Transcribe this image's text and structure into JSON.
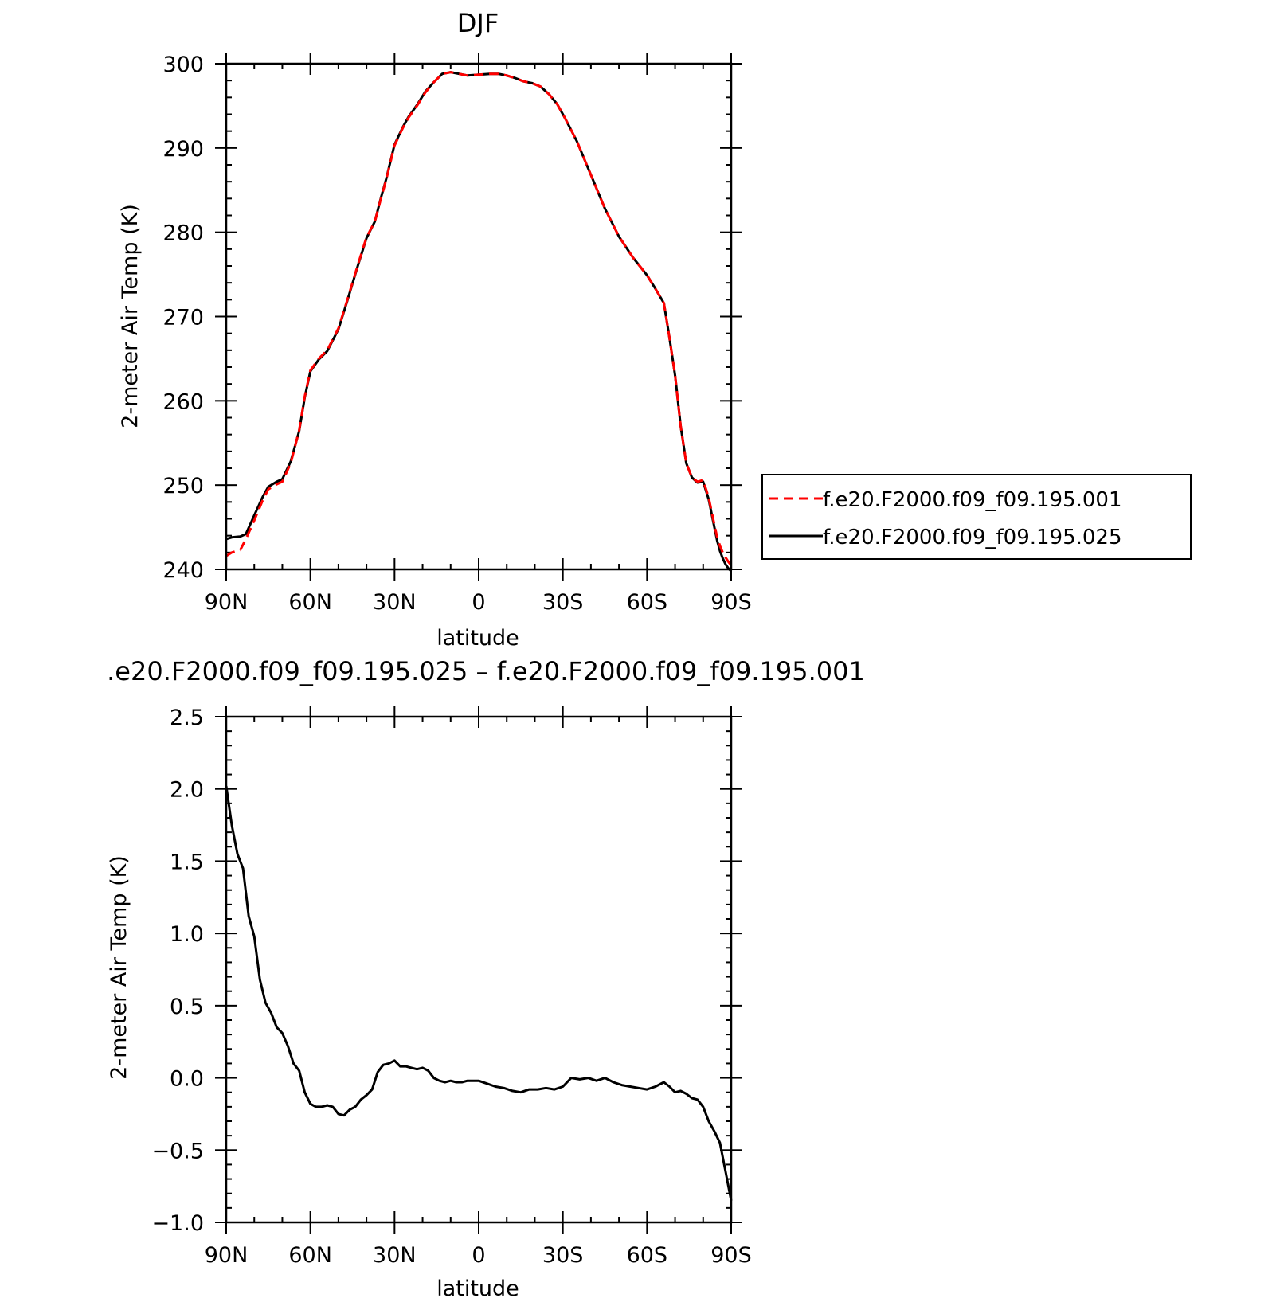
{
  "chart_data": [
    {
      "type": "line",
      "title": "DJF",
      "xlabel": "latitude",
      "ylabel": "2-meter Air Temp (K)",
      "xlim": [
        90,
        -90
      ],
      "ylim": [
        240,
        300
      ],
      "x_ticks": [
        90,
        60,
        30,
        0,
        -30,
        -60,
        -90
      ],
      "x_tick_labels": [
        "90N",
        "60N",
        "30N",
        "0",
        "30S",
        "60S",
        "90S"
      ],
      "y_ticks": [
        240,
        250,
        260,
        270,
        280,
        290,
        300
      ],
      "y_tick_labels": [
        "240",
        "250",
        "260",
        "270",
        "280",
        "290",
        "300"
      ],
      "legend_position": "right",
      "x": [
        90,
        88,
        85,
        83,
        80,
        77,
        75,
        72,
        70,
        67,
        64,
        62,
        60,
        57,
        54,
        50,
        47,
        43,
        40,
        37,
        35,
        33,
        30,
        27,
        25,
        22,
        19,
        16,
        13,
        10,
        7,
        4,
        0,
        -4,
        -7,
        -10,
        -13,
        -16,
        -19,
        -22,
        -25,
        -28,
        -31,
        -35,
        -40,
        -45,
        -50,
        -55,
        -60,
        -63,
        -66,
        -68,
        -70,
        -72,
        -74,
        -76,
        -78,
        -80,
        -82,
        -84,
        -85,
        -86,
        -87,
        -88,
        -89,
        -90
      ],
      "series": [
        {
          "name": "f.e20.F2000.f09_f09.195.001",
          "color": "#ff0000",
          "dash": "dashed",
          "values": [
            241.6,
            242.0,
            242.3,
            243.6,
            245.8,
            248.2,
            249.5,
            250.1,
            250.4,
            252.6,
            256.5,
            260.5,
            263.6,
            265.0,
            266.0,
            268.6,
            271.8,
            276.2,
            279.4,
            281.3,
            283.8,
            286.2,
            290.3,
            292.4,
            293.6,
            295.0,
            296.6,
            297.8,
            298.8,
            299.0,
            298.8,
            298.6,
            298.7,
            298.8,
            298.8,
            298.6,
            298.3,
            297.9,
            297.7,
            297.3,
            296.4,
            295.2,
            293.4,
            290.8,
            286.8,
            282.8,
            279.5,
            277.0,
            274.9,
            273.3,
            271.6,
            267.5,
            263.0,
            257.0,
            252.6,
            250.9,
            250.4,
            250.6,
            248.5,
            245.3,
            243.8,
            242.8,
            242.0,
            241.4,
            240.9,
            240.5
          ]
        },
        {
          "name": "f.e20.F2000.f09_f09.195.025",
          "color": "#000000",
          "dash": "solid",
          "values": [
            243.6,
            243.8,
            243.9,
            244.2,
            246.4,
            248.6,
            249.8,
            250.4,
            250.7,
            252.8,
            256.4,
            260.4,
            263.5,
            264.9,
            265.9,
            268.5,
            271.7,
            276.1,
            279.3,
            281.3,
            283.9,
            286.3,
            290.4,
            292.5,
            293.7,
            295.1,
            296.7,
            297.8,
            298.8,
            299.0,
            298.8,
            298.6,
            298.7,
            298.8,
            298.8,
            298.6,
            298.3,
            297.9,
            297.7,
            297.3,
            296.4,
            295.2,
            293.4,
            290.8,
            286.8,
            282.8,
            279.5,
            277.0,
            274.9,
            273.3,
            271.6,
            267.5,
            263.0,
            257.0,
            252.6,
            250.9,
            250.3,
            250.4,
            248.3,
            245.0,
            243.4,
            242.2,
            241.3,
            240.6,
            240.1,
            239.8
          ]
        }
      ]
    },
    {
      "type": "line",
      "title": ".e20.F2000.f09_f09.195.025 – f.e20.F2000.f09_f09.195.001",
      "xlabel": "latitude",
      "ylabel": "2-meter Air Temp (K)",
      "xlim": [
        90,
        -90
      ],
      "ylim": [
        -1.0,
        2.5
      ],
      "x_ticks": [
        90,
        60,
        30,
        0,
        -30,
        -60,
        -90
      ],
      "x_tick_labels": [
        "90N",
        "60N",
        "30N",
        "0",
        "30S",
        "60S",
        "90S"
      ],
      "y_ticks": [
        -1.0,
        -0.5,
        0.0,
        0.5,
        1.0,
        1.5,
        2.0,
        2.5
      ],
      "y_tick_labels": [
        "−1.0",
        "−0.5",
        "0.0",
        "0.5",
        "1.0",
        "1.5",
        "2.0",
        "2.5"
      ],
      "x": [
        90,
        88,
        86,
        84,
        82,
        80,
        78,
        76,
        74,
        72,
        70,
        68,
        66,
        64,
        62,
        60,
        58,
        56,
        54,
        52,
        50,
        48,
        46,
        44,
        42,
        40,
        38,
        36,
        34,
        32,
        30,
        28,
        26,
        24,
        22,
        20,
        18,
        16,
        14,
        12,
        10,
        8,
        6,
        4,
        2,
        0,
        -3,
        -6,
        -9,
        -12,
        -15,
        -18,
        -21,
        -24,
        -27,
        -30,
        -33,
        -36,
        -39,
        -42,
        -45,
        -48,
        -51,
        -54,
        -57,
        -60,
        -63,
        -66,
        -68,
        -70,
        -72,
        -74,
        -76,
        -78,
        -80,
        -82,
        -84,
        -86,
        -88,
        -90
      ],
      "series": [
        {
          "name": "",
          "color": "#000000",
          "dash": "solid",
          "values": [
            2.02,
            1.75,
            1.55,
            1.45,
            1.12,
            0.98,
            0.68,
            0.52,
            0.45,
            0.35,
            0.31,
            0.22,
            0.1,
            0.05,
            -0.1,
            -0.18,
            -0.2,
            -0.2,
            -0.19,
            -0.2,
            -0.25,
            -0.26,
            -0.22,
            -0.2,
            -0.15,
            -0.12,
            -0.08,
            0.04,
            0.09,
            0.1,
            0.12,
            0.08,
            0.08,
            0.07,
            0.06,
            0.07,
            0.05,
            0.0,
            -0.02,
            -0.03,
            -0.02,
            -0.03,
            -0.03,
            -0.02,
            -0.02,
            -0.02,
            -0.04,
            -0.06,
            -0.07,
            -0.09,
            -0.1,
            -0.08,
            -0.08,
            -0.07,
            -0.08,
            -0.06,
            0.0,
            -0.01,
            0.0,
            -0.02,
            0.0,
            -0.03,
            -0.05,
            -0.06,
            -0.07,
            -0.08,
            -0.06,
            -0.03,
            -0.06,
            -0.1,
            -0.09,
            -0.11,
            -0.14,
            -0.15,
            -0.2,
            -0.3,
            -0.37,
            -0.45,
            -0.65,
            -0.85
          ]
        }
      ]
    }
  ]
}
